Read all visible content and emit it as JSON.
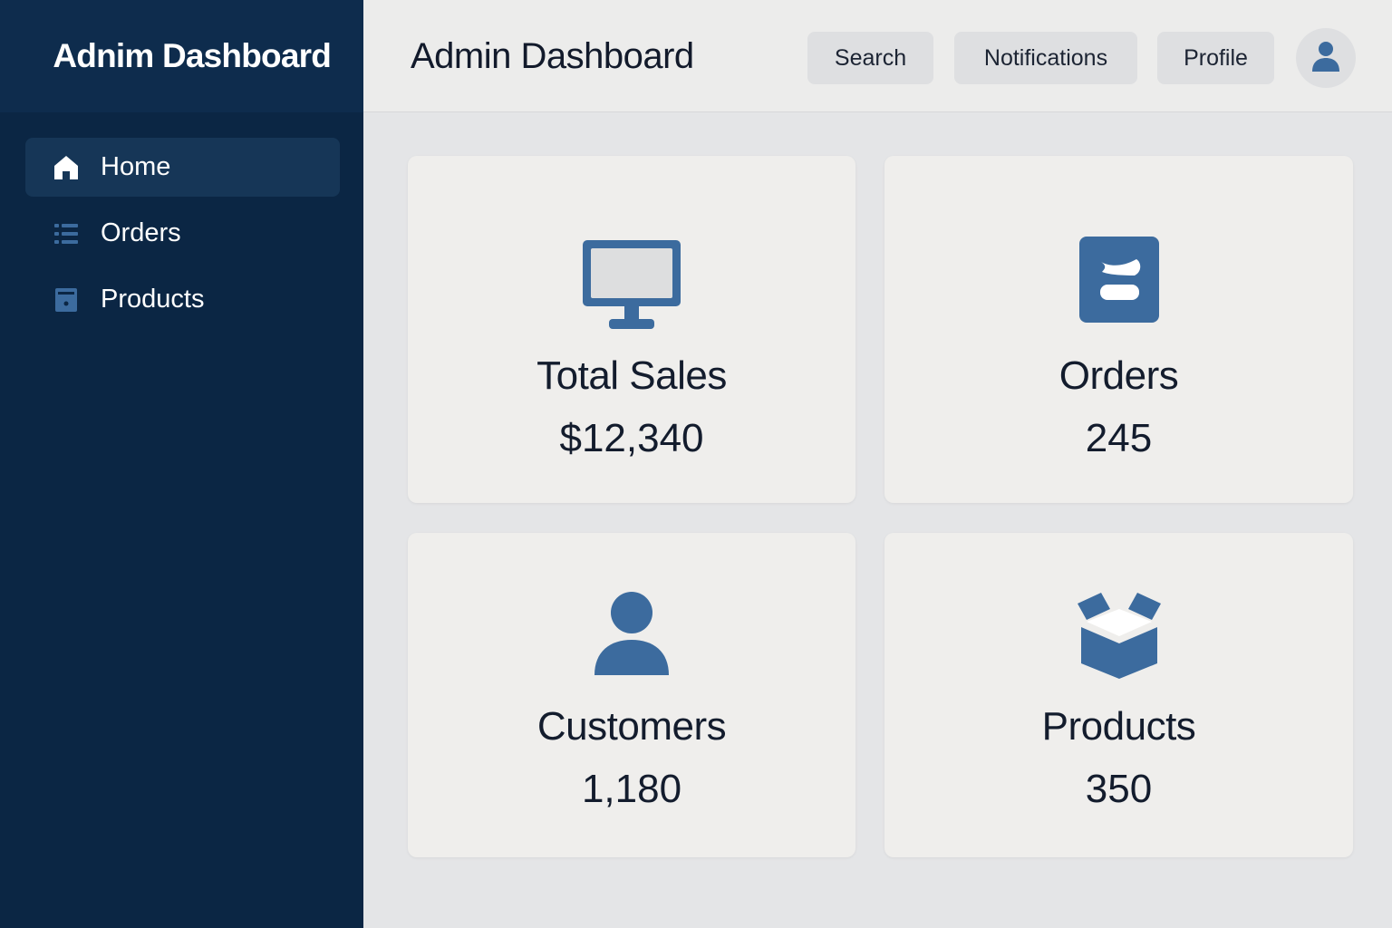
{
  "sidebar": {
    "brand": "Adnim Dashboard",
    "items": [
      {
        "label": "Home",
        "icon": "home-icon",
        "active": true
      },
      {
        "label": "Orders",
        "icon": "list-icon",
        "active": false
      },
      {
        "label": "Products",
        "icon": "archive-icon",
        "active": false
      }
    ]
  },
  "header": {
    "title": "Admin Dashboard",
    "buttons": {
      "search": "Search",
      "notifications": "Notifications",
      "profile": "Profile"
    },
    "avatar_icon": "user-icon"
  },
  "cards": [
    {
      "title": "Total Sales",
      "value": "$12,340",
      "icon": "monitor-icon"
    },
    {
      "title": "Orders",
      "value": "245",
      "icon": "orders-icon"
    },
    {
      "title": "Customers",
      "value": "1,180",
      "icon": "user-icon"
    },
    {
      "title": "Products",
      "value": "350",
      "icon": "box-icon"
    }
  ],
  "colors": {
    "sidebar_bg": "#0b2644",
    "accent": "#3c6b9e",
    "page_bg": "#e4e5e7",
    "card_bg": "#efeeec"
  }
}
